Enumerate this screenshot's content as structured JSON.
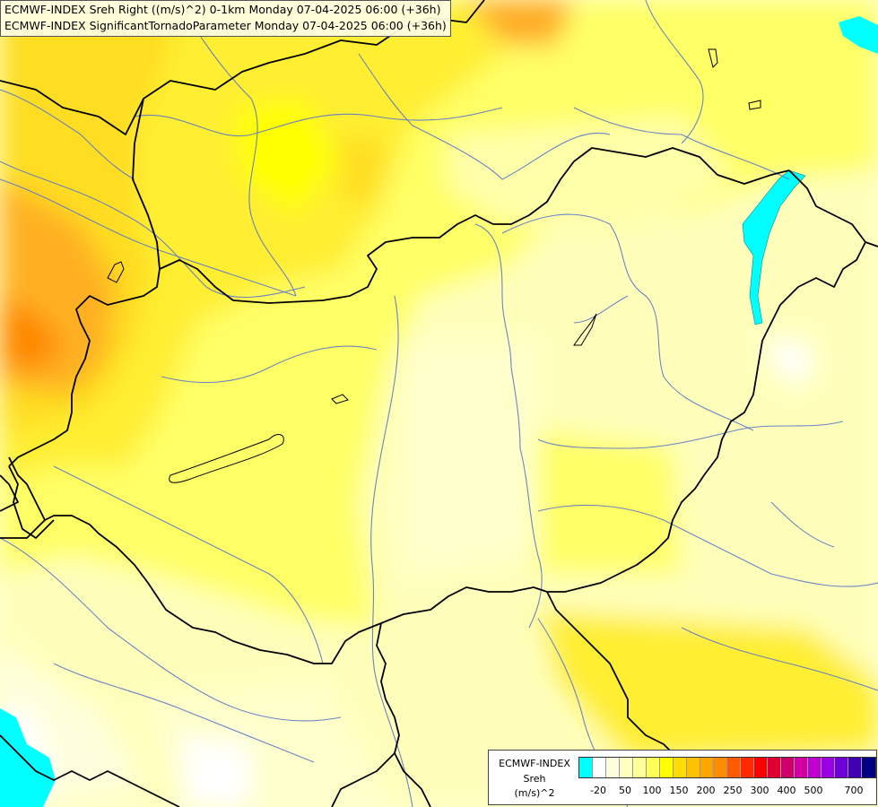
{
  "titles": {
    "line1": "ECMWF-INDEX Sreh Right ((m/s)^2) 0-1km Monday 07-04-2025 06:00 (+36h)",
    "line2": "ECMWF-INDEX SignificantTornadoParameter Monday 07-04-2025 06:00 (+36h)"
  },
  "legend": {
    "line1": "ECMWF-INDEX",
    "line2": "Sreh",
    "line3": "(m/s)^2",
    "colors": [
      "#00ffff",
      "#ffffff",
      "#ffffe0",
      "#ffffc0",
      "#ffff99",
      "#ffff55",
      "#ffff00",
      "#ffdd00",
      "#ffc000",
      "#ffa500",
      "#ff8c00",
      "#ff5a00",
      "#ff2a00",
      "#ff0000",
      "#dd0030",
      "#d0006a",
      "#d000a0",
      "#c000d0",
      "#9a00e0",
      "#7000d8",
      "#4000b0",
      "#000080"
    ],
    "ticks": [
      "-20",
      "50",
      "100",
      "150",
      "200",
      "250",
      "300",
      "400",
      "500",
      "700"
    ]
  },
  "colors": {
    "border": "#000000",
    "river": "#5a78c8",
    "lake": "#00ffff"
  }
}
